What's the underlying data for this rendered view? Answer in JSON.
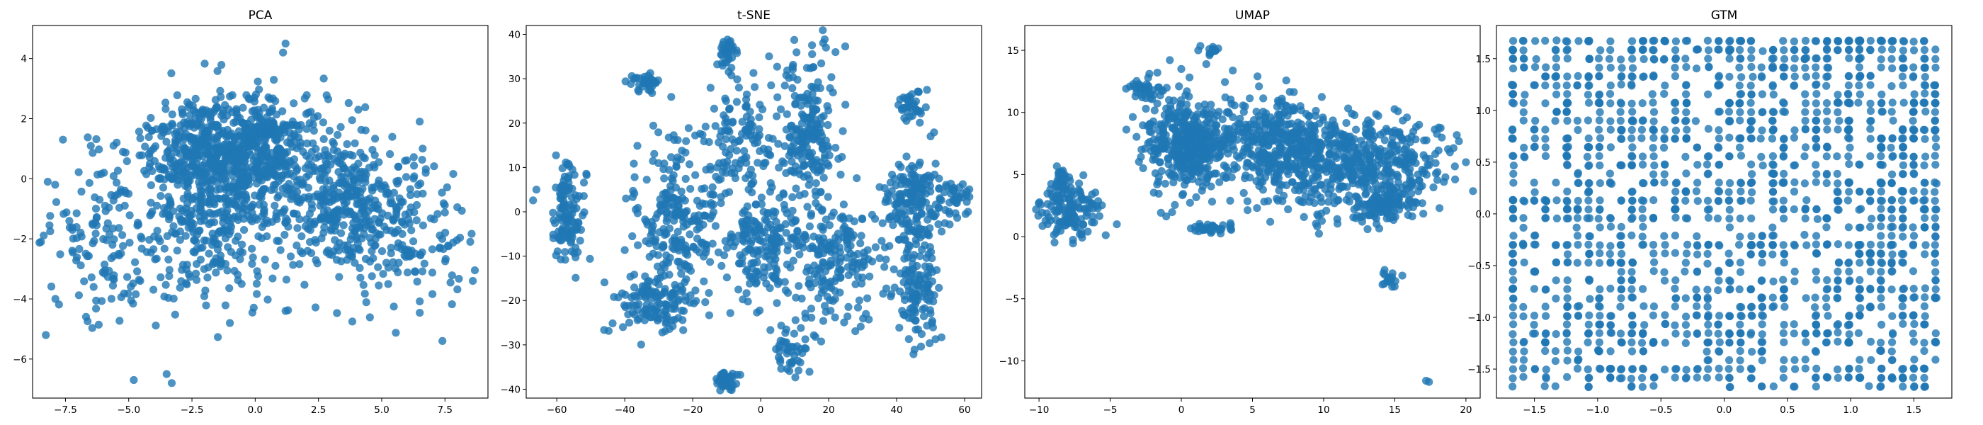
{
  "figure": {
    "background": "#ffffff"
  },
  "style": {
    "marker_color": "#1f77b4",
    "marker_alpha": 0.8
  },
  "chart_data": [
    {
      "type": "scatter",
      "title": "PCA",
      "xlabel": "",
      "ylabel": "",
      "xlim": [
        -8.8,
        9.2
      ],
      "ylim": [
        -7.3,
        5.1
      ],
      "xticks": [
        -7.5,
        -5.0,
        -2.5,
        0.0,
        2.5,
        5.0,
        7.5
      ],
      "xtick_labels": [
        "−7.5",
        "−5.0",
        "−2.5",
        "0.0",
        "2.5",
        "5.0",
        "7.5"
      ],
      "yticks": [
        -6,
        -4,
        -2,
        0,
        2,
        4
      ],
      "ytick_labels": [
        "−6",
        "−4",
        "−2",
        "0",
        "2",
        "4"
      ],
      "grid": false,
      "n_points": 1700,
      "clusters": [
        {
          "cx": -2.2,
          "cy": 0.8,
          "sx": 1.1,
          "sy": 1.0,
          "w": 0.22
        },
        {
          "cx": 0.3,
          "cy": 1.0,
          "sx": 1.1,
          "sy": 0.9,
          "w": 0.24
        },
        {
          "cx": 3.6,
          "cy": -0.7,
          "sx": 1.2,
          "sy": 1.2,
          "w": 0.2
        },
        {
          "cx": -1.2,
          "cy": -1.5,
          "sx": 1.6,
          "sy": 1.3,
          "w": 0.16
        },
        {
          "cx": -5.5,
          "cy": -2.0,
          "sx": 1.5,
          "sy": 1.4,
          "w": 0.1
        },
        {
          "cx": 6.0,
          "cy": -1.8,
          "sx": 1.4,
          "sy": 1.3,
          "w": 0.08
        }
      ],
      "outliers": [
        {
          "x": -4.8,
          "y": -6.7
        },
        {
          "x": -3.3,
          "y": -6.8
        },
        {
          "x": -3.5,
          "y": -6.5
        },
        {
          "x": 1.2,
          "y": 4.5
        },
        {
          "x": 1.1,
          "y": 4.2
        },
        {
          "x": 7.4,
          "y": -5.4
        },
        {
          "x": -7.9,
          "y": -4.0
        },
        {
          "x": 8.6,
          "y": -3.4
        },
        {
          "x": -8.2,
          "y": -0.1
        },
        {
          "x": 8.5,
          "y": -2.1
        },
        {
          "x": -7.6,
          "y": 1.3
        },
        {
          "x": 6.5,
          "y": 1.9
        },
        {
          "x": -5.6,
          "y": 1.1
        },
        {
          "x": -1.0,
          "y": -4.8
        },
        {
          "x": 1.2,
          "y": -4.4
        }
      ]
    },
    {
      "type": "scatter",
      "title": "t-SNE",
      "xlabel": "",
      "ylabel": "",
      "xlim": [
        -69,
        65
      ],
      "ylim": [
        -42,
        42
      ],
      "xticks": [
        -60,
        -40,
        -20,
        0,
        20,
        40,
        60
      ],
      "xtick_labels": [
        "−60",
        "−40",
        "−20",
        "0",
        "20",
        "40",
        "60"
      ],
      "yticks": [
        -40,
        -30,
        -20,
        -10,
        0,
        10,
        20,
        30,
        40
      ],
      "ytick_labels": [
        "−40",
        "−30",
        "−20",
        "−10",
        "0",
        "10",
        "20",
        "30",
        "40"
      ],
      "grid": false,
      "n_points": 1700,
      "clusters": [
        {
          "cx": -57,
          "cy": 0,
          "sx": 2.5,
          "sy": 6.5,
          "w": 0.07
        },
        {
          "cx": -24,
          "cy": -2,
          "sx": 6.5,
          "sy": 9.0,
          "w": 0.13
        },
        {
          "cx": -30,
          "cy": -21,
          "sx": 6.0,
          "sy": 3.5,
          "w": 0.08
        },
        {
          "cx": -34,
          "cy": 29,
          "sx": 2.0,
          "sy": 1.3,
          "w": 0.02
        },
        {
          "cx": -10,
          "cy": 36,
          "sx": 1.3,
          "sy": 2.0,
          "w": 0.02
        },
        {
          "cx": -5,
          "cy": 15,
          "sx": 5.5,
          "sy": 6.5,
          "w": 0.08
        },
        {
          "cx": 0,
          "cy": -8,
          "sx": 5.0,
          "sy": 6.0,
          "w": 0.1
        },
        {
          "cx": 14,
          "cy": 18,
          "sx": 4.5,
          "sy": 10.0,
          "w": 0.12
        },
        {
          "cx": 21,
          "cy": -12,
          "sx": 6.5,
          "sy": 6.0,
          "w": 0.1
        },
        {
          "cx": 45,
          "cy": 3,
          "sx": 5.0,
          "sy": 5.0,
          "w": 0.09
        },
        {
          "cx": 46,
          "cy": -17,
          "sx": 3.0,
          "sy": 6.0,
          "w": 0.07
        },
        {
          "cx": 44,
          "cy": 24,
          "sx": 2.0,
          "sy": 1.8,
          "w": 0.02
        },
        {
          "cx": 10,
          "cy": -31,
          "sx": 3.0,
          "sy": 2.5,
          "w": 0.03
        },
        {
          "cx": -10,
          "cy": -38,
          "sx": 1.8,
          "sy": 1.0,
          "w": 0.02
        },
        {
          "cx": 58,
          "cy": 3,
          "sx": 2.0,
          "sy": 1.8,
          "w": 0.02
        }
      ],
      "outliers": [
        {
          "x": 61,
          "y": 0
        },
        {
          "x": -66,
          "y": 5
        },
        {
          "x": 22,
          "y": 36
        },
        {
          "x": 50,
          "y": 17
        }
      ]
    },
    {
      "type": "scatter",
      "title": "UMAP",
      "xlabel": "",
      "ylabel": "",
      "xlim": [
        -11,
        21
      ],
      "ylim": [
        -13,
        17
      ],
      "xticks": [
        -10,
        -5,
        0,
        5,
        10,
        15,
        20
      ],
      "xtick_labels": [
        "−10",
        "−5",
        "0",
        "5",
        "10",
        "15",
        "20"
      ],
      "yticks": [
        -10,
        -5,
        0,
        5,
        10,
        15
      ],
      "ytick_labels": [
        "−10",
        "−5",
        "0",
        "5",
        "10",
        "15"
      ],
      "grid": false,
      "n_points": 1700,
      "clusters": [
        {
          "cx": 0.5,
          "cy": 7.5,
          "sx": 1.6,
          "sy": 2.0,
          "w": 0.26
        },
        {
          "cx": -2.5,
          "cy": 12.0,
          "sx": 0.6,
          "sy": 0.5,
          "w": 0.02
        },
        {
          "cx": 2.0,
          "cy": 15.0,
          "sx": 0.3,
          "sy": 0.3,
          "w": 0.01
        },
        {
          "cx": 7.0,
          "cy": 7.0,
          "sx": 2.0,
          "sy": 2.0,
          "w": 0.2
        },
        {
          "cx": 11.0,
          "cy": 6.0,
          "sx": 2.0,
          "sy": 2.0,
          "w": 0.13
        },
        {
          "cx": 15.0,
          "cy": 6.0,
          "sx": 2.2,
          "sy": 1.8,
          "w": 0.13
        },
        {
          "cx": 14.0,
          "cy": 2.5,
          "sx": 1.0,
          "sy": 0.7,
          "w": 0.05
        },
        {
          "cx": -8.0,
          "cy": 2.0,
          "sx": 1.2,
          "sy": 1.0,
          "w": 0.08
        },
        {
          "cx": -8.5,
          "cy": 4.5,
          "sx": 0.3,
          "sy": 0.6,
          "w": 0.02
        },
        {
          "cx": 2.0,
          "cy": 0.7,
          "sx": 0.8,
          "sy": 0.2,
          "w": 0.02
        },
        {
          "cx": 14.7,
          "cy": -3.4,
          "sx": 0.3,
          "sy": 0.4,
          "w": 0.01
        }
      ],
      "outliers": [
        {
          "x": 17.2,
          "y": -11.6
        },
        {
          "x": 17.4,
          "y": -11.7
        },
        {
          "x": 0.0,
          "y": 13.5
        }
      ]
    },
    {
      "type": "scatter",
      "title": "GTM",
      "xlabel": "",
      "ylabel": "",
      "xlim": [
        -1.8,
        1.8
      ],
      "ylim": [
        -1.78,
        1.82
      ],
      "xticks": [
        -1.5,
        -1.0,
        -0.5,
        0.0,
        0.5,
        1.0,
        1.5
      ],
      "xtick_labels": [
        "−1.5",
        "−1.0",
        "−0.5",
        "0.0",
        "0.5",
        "1.0",
        "1.5"
      ],
      "yticks": [
        -1.5,
        -1.0,
        -0.5,
        0.0,
        0.5,
        1.0,
        1.5
      ],
      "ytick_labels": [
        "−1.5",
        "−1.0",
        "−0.5",
        "0.0",
        "0.5",
        "1.0",
        "1.5"
      ],
      "grid": false,
      "n_points": 1700,
      "layout": "lattice",
      "lattice_min": -1.67,
      "lattice_max": 1.67,
      "lattice_n": 40
    }
  ]
}
